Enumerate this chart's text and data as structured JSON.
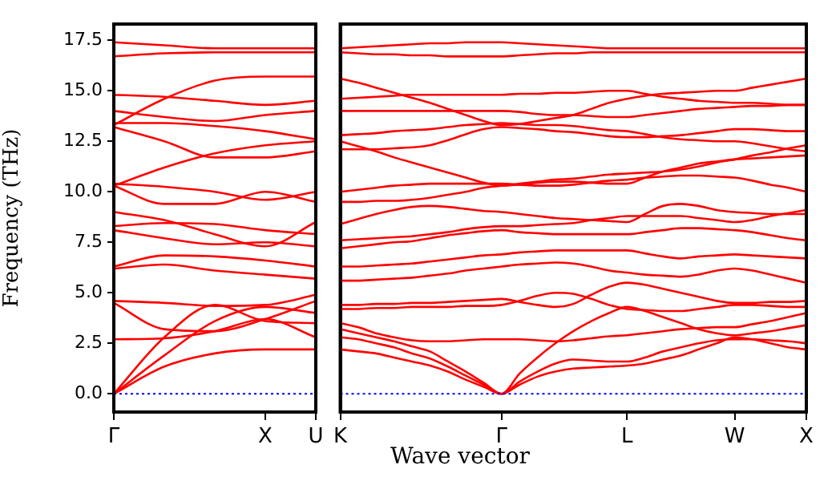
{
  "chart_data": [
    {
      "type": "line",
      "ylabel": "Frequency (THz)",
      "legend": false,
      "line_style": "solid",
      "categories": [
        "Γ",
        null,
        null,
        "X",
        "U"
      ],
      "ylim": [
        -0.9,
        18.3
      ],
      "yticks": [
        {
          "value": 0,
          "label": "0.0"
        },
        {
          "value": 2.5,
          "label": "2.5"
        },
        {
          "value": 5,
          "label": "5.0"
        },
        {
          "value": 7.5,
          "label": "7.5"
        },
        {
          "value": 10,
          "label": "10.0"
        },
        {
          "value": 12.5,
          "label": "12.5"
        },
        {
          "value": 15,
          "label": "15.0"
        },
        {
          "value": 17.5,
          "label": "17.5"
        }
      ],
      "ref_lines": [
        {
          "axis": "y",
          "value": 0,
          "color": "#0000ff",
          "line_style": "dotted"
        }
      ],
      "series": [
        {
          "color": "#ff0000",
          "values": [
            0,
            1.35,
            2.0,
            2.2,
            2.2
          ]
        },
        {
          "color": "#ff0000",
          "values": [
            0,
            1.9,
            3.6,
            4.3,
            4.0
          ]
        },
        {
          "color": "#ff0000",
          "values": [
            0,
            2.8,
            4.4,
            3.6,
            3.5
          ]
        },
        {
          "color": "#ff0000",
          "values": [
            2.7,
            2.75,
            3.1,
            3.7,
            2.8
          ]
        },
        {
          "color": "#ff0000",
          "values": [
            4.5,
            3.2,
            3.1,
            3.7,
            4.6
          ]
        },
        {
          "color": "#ff0000",
          "values": [
            4.6,
            4.5,
            4.35,
            4.4,
            4.9
          ]
        },
        {
          "color": "#ff0000",
          "values": [
            6.2,
            6.4,
            6.1,
            5.9,
            5.7
          ]
        },
        {
          "color": "#ff0000",
          "values": [
            6.3,
            6.85,
            6.8,
            6.6,
            6.3
          ]
        },
        {
          "color": "#ff0000",
          "values": [
            8.1,
            7.7,
            7.4,
            7.5,
            7.3
          ]
        },
        {
          "color": "#ff0000",
          "values": [
            8.3,
            8.45,
            8.4,
            8.1,
            7.9
          ]
        },
        {
          "color": "#ff0000",
          "values": [
            9.0,
            8.6,
            7.9,
            7.3,
            8.5
          ]
        },
        {
          "color": "#ff0000",
          "values": [
            10.3,
            9.4,
            9.4,
            10.0,
            9.5
          ]
        },
        {
          "color": "#ff0000",
          "values": [
            10.4,
            10.25,
            10.0,
            9.6,
            10.0
          ]
        },
        {
          "color": "#ff0000",
          "values": [
            10.3,
            11.2,
            11.9,
            12.3,
            12.5
          ]
        },
        {
          "color": "#ff0000",
          "values": [
            13.2,
            12.5,
            11.7,
            11.7,
            12.0
          ]
        },
        {
          "color": "#ff0000",
          "values": [
            13.4,
            13.4,
            13.25,
            13.0,
            12.6
          ]
        },
        {
          "color": "#ff0000",
          "values": [
            14.0,
            13.7,
            13.5,
            13.8,
            14.0
          ]
        },
        {
          "color": "#ff0000",
          "values": [
            13.3,
            14.6,
            15.5,
            15.7,
            15.7
          ]
        },
        {
          "color": "#ff0000",
          "values": [
            14.8,
            14.7,
            14.5,
            14.3,
            14.5
          ]
        },
        {
          "color": "#ff0000",
          "values": [
            16.7,
            16.85,
            16.9,
            16.9,
            16.9
          ]
        },
        {
          "color": "#ff0000",
          "values": [
            17.4,
            17.25,
            17.1,
            17.1,
            17.1
          ]
        }
      ]
    },
    {
      "type": "line",
      "xlabel": "Wave vector",
      "legend": false,
      "line_style": "solid",
      "tick_labels": "x",
      "categories": [
        "K",
        null,
        null,
        null,
        null,
        null,
        null,
        null,
        null,
        "Γ",
        null,
        null,
        null,
        null,
        null,
        null,
        "L",
        null,
        null,
        null,
        null,
        null,
        "W",
        null,
        null,
        null,
        "X"
      ],
      "ylim": [
        -0.9,
        18.3
      ],
      "yticks": [
        {
          "value": 0,
          "label": null
        },
        {
          "value": 2.5,
          "label": null
        },
        {
          "value": 5,
          "label": null
        },
        {
          "value": 7.5,
          "label": null
        },
        {
          "value": 10,
          "label": null
        },
        {
          "value": 12.5,
          "label": null
        },
        {
          "value": 15,
          "label": null
        },
        {
          "value": 17.5,
          "label": null
        }
      ],
      "ref_lines": [
        {
          "axis": "y",
          "value": 0,
          "color": "#0000ff",
          "line_style": "dotted"
        }
      ],
      "series": [
        {
          "color": "#ff0000",
          "values": [
            2.2,
            2.1,
            2.0,
            1.8,
            1.6,
            1.4,
            1.1,
            0.7,
            0.35,
            0,
            0.45,
            0.85,
            1.1,
            1.25,
            1.3,
            1.35,
            1.4,
            1.5,
            1.7,
            1.9,
            2.2,
            2.5,
            2.8,
            2.7,
            2.5,
            2.3,
            2.2
          ]
        },
        {
          "color": "#ff0000",
          "values": [
            2.8,
            2.7,
            2.5,
            2.3,
            2.0,
            1.75,
            1.35,
            0.9,
            0.45,
            0,
            0.6,
            1.1,
            1.5,
            1.7,
            1.65,
            1.6,
            1.6,
            1.8,
            2.1,
            2.3,
            2.5,
            2.65,
            2.7,
            2.7,
            2.65,
            2.6,
            2.5
          ]
        },
        {
          "color": "#ff0000",
          "values": [
            3.2,
            3.0,
            2.8,
            2.6,
            2.35,
            2.1,
            1.6,
            1.1,
            0.55,
            0,
            1.0,
            1.8,
            2.5,
            3.1,
            3.6,
            4.0,
            4.3,
            4.1,
            3.8,
            3.5,
            3.2,
            3.0,
            2.9,
            3.0,
            3.1,
            3.25,
            3.4
          ]
        },
        {
          "color": "#ff0000",
          "values": [
            3.5,
            3.3,
            3.0,
            2.8,
            2.65,
            2.6,
            2.6,
            2.65,
            2.7,
            2.7,
            2.7,
            2.65,
            2.6,
            2.65,
            2.75,
            2.85,
            2.9,
            3.0,
            3.1,
            3.2,
            3.25,
            3.3,
            3.3,
            3.45,
            3.6,
            3.8,
            4.0
          ]
        },
        {
          "color": "#ff0000",
          "values": [
            4.2,
            4.2,
            4.25,
            4.25,
            4.3,
            4.3,
            4.3,
            4.35,
            4.35,
            4.4,
            4.6,
            4.85,
            5.0,
            4.95,
            4.7,
            4.4,
            4.2,
            4.15,
            4.1,
            4.1,
            4.2,
            4.3,
            4.4,
            4.4,
            4.35,
            4.3,
            4.3
          ]
        },
        {
          "color": "#ff0000",
          "values": [
            4.4,
            4.4,
            4.45,
            4.45,
            4.5,
            4.5,
            4.55,
            4.6,
            4.65,
            4.7,
            4.55,
            4.4,
            4.3,
            4.45,
            4.9,
            5.3,
            5.5,
            5.4,
            5.2,
            5.0,
            4.8,
            4.6,
            4.5,
            4.5,
            4.55,
            4.55,
            4.6
          ]
        },
        {
          "color": "#ff0000",
          "values": [
            5.6,
            5.6,
            5.65,
            5.7,
            5.75,
            5.85,
            5.95,
            6.1,
            6.2,
            6.3,
            6.4,
            6.45,
            6.5,
            6.45,
            6.3,
            6.1,
            6.0,
            5.9,
            5.85,
            5.8,
            5.9,
            6.1,
            6.2,
            6.1,
            5.9,
            5.7,
            5.5
          ]
        },
        {
          "color": "#ff0000",
          "values": [
            6.3,
            6.3,
            6.35,
            6.4,
            6.45,
            6.55,
            6.65,
            6.75,
            6.85,
            6.9,
            7.0,
            7.05,
            7.1,
            7.1,
            7.1,
            7.1,
            7.1,
            6.95,
            6.8,
            6.7,
            6.8,
            6.85,
            6.9,
            6.85,
            6.8,
            6.75,
            6.7
          ]
        },
        {
          "color": "#ff0000",
          "values": [
            7.2,
            7.3,
            7.4,
            7.5,
            7.55,
            7.7,
            7.85,
            7.95,
            8.05,
            8.1,
            8.0,
            7.95,
            7.9,
            7.9,
            7.9,
            7.9,
            7.9,
            8.0,
            8.1,
            8.2,
            8.2,
            8.15,
            8.1,
            8.0,
            7.85,
            7.7,
            7.6
          ]
        },
        {
          "color": "#ff0000",
          "values": [
            7.6,
            7.65,
            7.7,
            7.75,
            7.8,
            7.9,
            8.0,
            8.15,
            8.25,
            8.3,
            8.3,
            8.35,
            8.4,
            8.45,
            8.6,
            8.7,
            8.8,
            8.8,
            8.8,
            8.8,
            8.7,
            8.6,
            8.5,
            8.6,
            8.8,
            8.95,
            9.1
          ]
        },
        {
          "color": "#ff0000",
          "values": [
            8.4,
            8.65,
            8.9,
            9.1,
            9.25,
            9.3,
            9.25,
            9.15,
            9.05,
            9.0,
            8.9,
            8.8,
            8.7,
            8.65,
            8.6,
            8.55,
            8.5,
            8.9,
            9.3,
            9.4,
            9.3,
            9.1,
            9.0,
            8.95,
            8.9,
            8.9,
            8.9
          ]
        },
        {
          "color": "#ff0000",
          "values": [
            9.5,
            9.5,
            9.55,
            9.55,
            9.6,
            9.7,
            9.85,
            10.0,
            10.2,
            10.3,
            10.35,
            10.45,
            10.5,
            10.5,
            10.45,
            10.4,
            10.4,
            10.7,
            11.0,
            11.2,
            11.4,
            11.5,
            11.6,
            11.65,
            11.7,
            11.75,
            11.8
          ]
        },
        {
          "color": "#ff0000",
          "values": [
            10.0,
            10.1,
            10.2,
            10.3,
            10.35,
            10.4,
            10.4,
            10.4,
            10.4,
            10.4,
            10.35,
            10.3,
            10.3,
            10.35,
            10.45,
            10.55,
            10.6,
            10.7,
            10.75,
            10.8,
            10.8,
            10.75,
            10.7,
            10.55,
            10.35,
            10.2,
            10.0
          ]
        },
        {
          "color": "#ff0000",
          "values": [
            12.5,
            12.25,
            12.0,
            11.7,
            11.45,
            11.2,
            10.95,
            10.7,
            10.45,
            10.3,
            10.4,
            10.5,
            10.6,
            10.65,
            10.75,
            10.85,
            10.9,
            10.95,
            11.0,
            11.1,
            11.25,
            11.45,
            11.6,
            11.8,
            11.95,
            12.15,
            12.3
          ]
        },
        {
          "color": "#ff0000",
          "values": [
            12.1,
            12.1,
            12.1,
            12.15,
            12.2,
            12.3,
            12.55,
            12.85,
            13.1,
            13.2,
            13.15,
            13.1,
            13.0,
            12.95,
            12.85,
            12.75,
            12.7,
            12.7,
            12.75,
            12.8,
            12.9,
            13.0,
            13.1,
            13.1,
            13.05,
            13.0,
            13.0
          ]
        },
        {
          "color": "#ff0000",
          "values": [
            12.8,
            12.85,
            12.9,
            13.0,
            13.05,
            13.1,
            13.2,
            13.3,
            13.35,
            13.4,
            13.35,
            13.3,
            13.3,
            13.25,
            13.15,
            13.05,
            13.0,
            12.85,
            12.7,
            12.6,
            12.55,
            12.5,
            12.5,
            12.4,
            12.25,
            12.1,
            12.0
          ]
        },
        {
          "color": "#ff0000",
          "values": [
            14.0,
            14.0,
            14.0,
            14.0,
            14.0,
            14.0,
            14.0,
            14.0,
            14.0,
            14.0,
            13.95,
            13.85,
            13.8,
            13.8,
            13.75,
            13.7,
            13.7,
            13.8,
            13.9,
            14.0,
            14.1,
            14.15,
            14.2,
            14.25,
            14.25,
            14.3,
            14.3
          ]
        },
        {
          "color": "#ff0000",
          "values": [
            15.6,
            15.4,
            15.15,
            14.9,
            14.65,
            14.4,
            14.1,
            13.8,
            13.5,
            13.3,
            13.35,
            13.5,
            13.65,
            13.8,
            14.1,
            14.4,
            14.6,
            14.75,
            14.85,
            14.9,
            14.95,
            15.0,
            15.0,
            15.15,
            15.3,
            15.45,
            15.6
          ]
        },
        {
          "color": "#ff0000",
          "values": [
            14.6,
            14.65,
            14.7,
            14.75,
            14.8,
            14.8,
            14.8,
            14.8,
            14.8,
            14.8,
            14.85,
            14.85,
            14.9,
            14.9,
            14.95,
            15.0,
            15.0,
            14.85,
            14.7,
            14.6,
            14.5,
            14.45,
            14.4,
            14.4,
            14.35,
            14.3,
            14.3
          ]
        },
        {
          "color": "#ff0000",
          "values": [
            16.9,
            16.85,
            16.8,
            16.8,
            16.75,
            16.75,
            16.7,
            16.7,
            16.7,
            16.7,
            16.75,
            16.8,
            16.85,
            16.85,
            16.9,
            16.9,
            16.9,
            16.9,
            16.9,
            16.9,
            16.9,
            16.9,
            16.9,
            16.9,
            16.9,
            16.9,
            16.9
          ]
        },
        {
          "color": "#ff0000",
          "values": [
            17.1,
            17.15,
            17.2,
            17.25,
            17.3,
            17.35,
            17.35,
            17.4,
            17.4,
            17.4,
            17.35,
            17.3,
            17.25,
            17.2,
            17.15,
            17.1,
            17.1,
            17.1,
            17.1,
            17.1,
            17.1,
            17.1,
            17.1,
            17.1,
            17.1,
            17.1,
            17.1
          ]
        }
      ]
    }
  ]
}
